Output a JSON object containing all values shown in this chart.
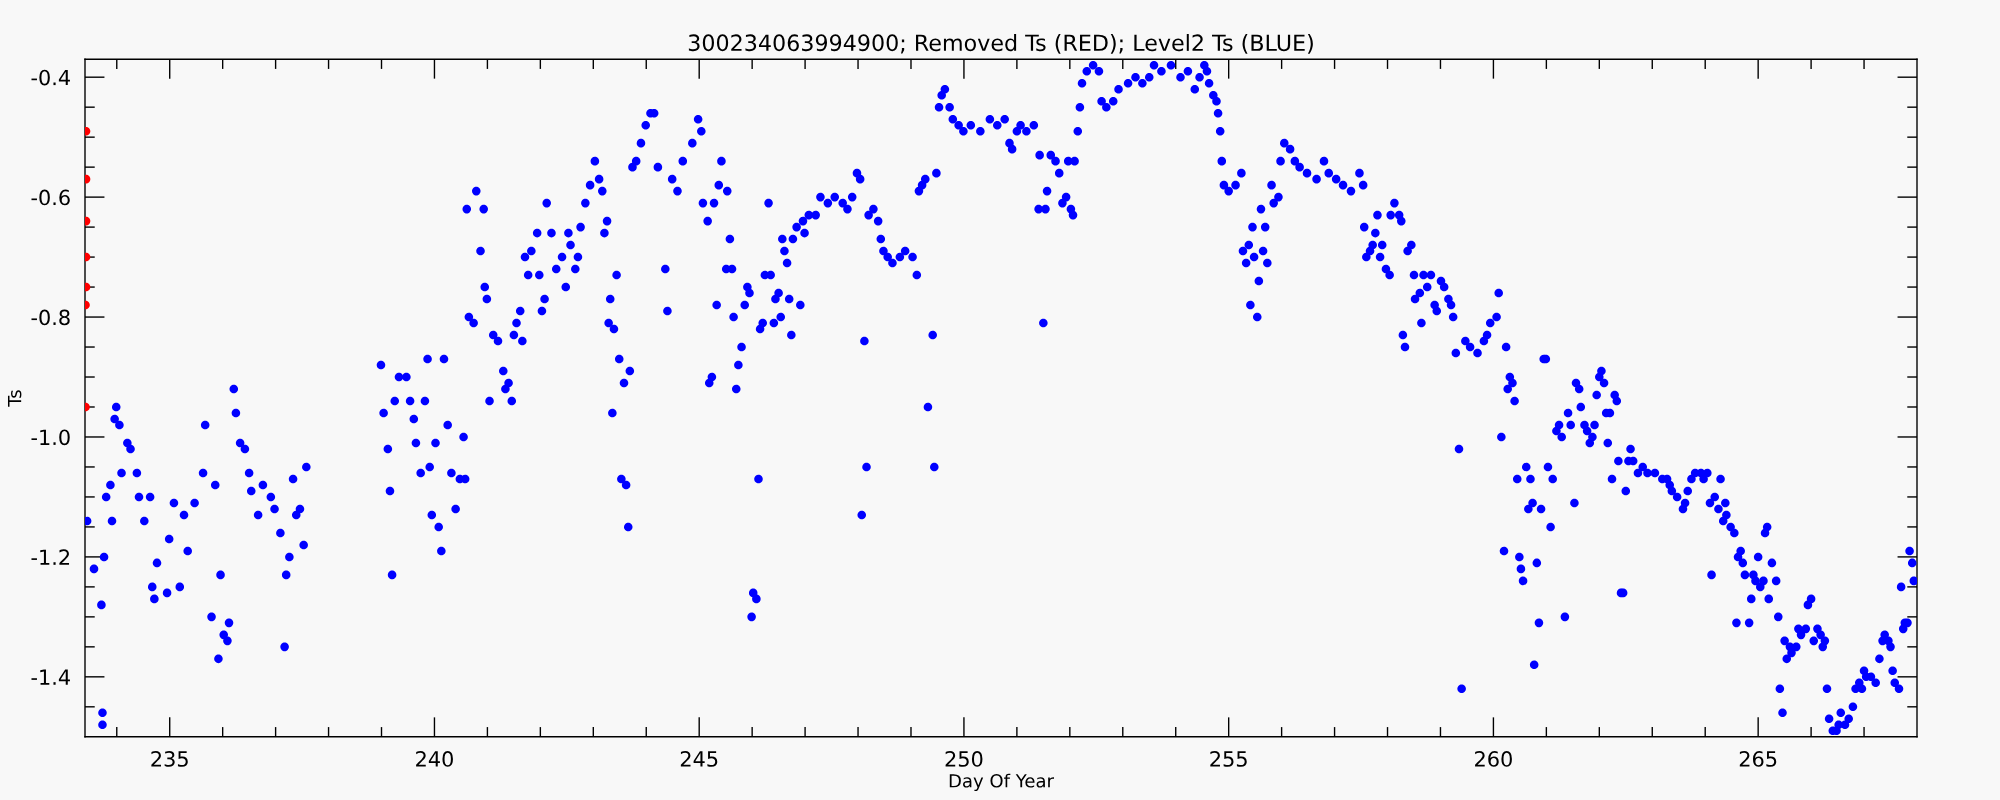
{
  "chart_data": {
    "type": "scatter",
    "title": "300234063994900; Removed Ts (RED); Level2 Ts (BLUE)",
    "xlabel": "Day Of Year",
    "ylabel": "Ts",
    "xlim": [
      233.4,
      268.0
    ],
    "ylim": [
      -1.5,
      -0.37
    ],
    "xticks": [
      {
        "value": 234,
        "label": null
      },
      235,
      {
        "value": 236,
        "label": null
      },
      {
        "value": 237,
        "label": null
      },
      {
        "value": 238,
        "label": null
      },
      {
        "value": 239,
        "label": null
      },
      240,
      {
        "value": 241,
        "label": null
      },
      {
        "value": 242,
        "label": null
      },
      {
        "value": 243,
        "label": null
      },
      {
        "value": 244,
        "label": null
      },
      245,
      {
        "value": 246,
        "label": null
      },
      {
        "value": 247,
        "label": null
      },
      {
        "value": 248,
        "label": null
      },
      {
        "value": 249,
        "label": null
      },
      250,
      {
        "value": 251,
        "label": null
      },
      {
        "value": 252,
        "label": null
      },
      {
        "value": 253,
        "label": null
      },
      {
        "value": 254,
        "label": null
      },
      255,
      {
        "value": 256,
        "label": null
      },
      {
        "value": 257,
        "label": null
      },
      {
        "value": 258,
        "label": null
      },
      {
        "value": 259,
        "label": null
      },
      260,
      {
        "value": 261,
        "label": null
      },
      {
        "value": 262,
        "label": null
      },
      {
        "value": 263,
        "label": null
      },
      {
        "value": 264,
        "label": null
      },
      265,
      {
        "value": 266,
        "label": null
      },
      {
        "value": 267,
        "label": null
      }
    ],
    "yticks": [
      {
        "value": -1.45,
        "label": null
      },
      {
        "value": -1.4,
        "label": "-1.4"
      },
      {
        "value": -1.35,
        "label": null
      },
      {
        "value": -1.3,
        "label": null
      },
      {
        "value": -1.25,
        "label": null
      },
      {
        "value": -1.2,
        "label": "-1.2"
      },
      {
        "value": -1.15,
        "label": null
      },
      {
        "value": -1.1,
        "label": null
      },
      {
        "value": -1.05,
        "label": null
      },
      {
        "value": -1.0,
        "label": "-1.0"
      },
      {
        "value": -0.95,
        "label": null
      },
      {
        "value": -0.9,
        "label": null
      },
      {
        "value": -0.85,
        "label": null
      },
      {
        "value": -0.8,
        "label": "-0.8"
      },
      {
        "value": -0.75,
        "label": null
      },
      {
        "value": -0.7,
        "label": null
      },
      {
        "value": -0.65,
        "label": null
      },
      {
        "value": -0.6,
        "label": "-0.6"
      },
      {
        "value": -0.55,
        "label": null
      },
      {
        "value": -0.5,
        "label": null
      },
      {
        "value": -0.45,
        "label": null
      },
      {
        "value": -0.4,
        "label": "-0.4"
      }
    ],
    "grid": false,
    "legend": false,
    "marker": "circle",
    "series": [
      {
        "color": "#ff0000",
        "x": [
          233.42,
          233.42,
          233.42,
          233.42,
          233.42,
          233.41,
          233.41
        ],
        "values": [
          -0.49,
          -0.57,
          -0.64,
          -0.7,
          -0.75,
          -0.78,
          -0.95
        ]
      },
      {
        "color": "#0000ff",
        "x": [
          233.44,
          233.57,
          233.71,
          233.73,
          233.73,
          233.76,
          233.8,
          233.88,
          233.91,
          233.99,
          233.96,
          234.05,
          234.09,
          234.2,
          234.26,
          234.38,
          234.42,
          234.52,
          234.63,
          234.67,
          234.71,
          234.76,
          234.95,
          234.99,
          235.08,
          235.19,
          235.27,
          235.34,
          235.47,
          235.63,
          235.67,
          235.79,
          235.86,
          235.92,
          235.96,
          236.02,
          236.09,
          236.12,
          236.21,
          236.25,
          236.33,
          236.42,
          236.5,
          236.54,
          236.67,
          236.76,
          236.91,
          236.98,
          237.09,
          237.17,
          237.2,
          237.26,
          237.33,
          237.39,
          237.46,
          237.53,
          237.58,
          238.99,
          239.04,
          239.12,
          239.16,
          239.2,
          239.25,
          239.33,
          239.47,
          239.54,
          239.61,
          239.65,
          239.74,
          239.82,
          239.87,
          239.91,
          239.95,
          240.02,
          240.08,
          240.13,
          240.18,
          240.25,
          240.32,
          240.4,
          240.48,
          240.55,
          240.58,
          240.61,
          240.65,
          240.74,
          240.79,
          240.87,
          240.93,
          240.95,
          240.99,
          241.04,
          241.11,
          241.2,
          241.3,
          241.34,
          241.4,
          241.46,
          241.5,
          241.55,
          241.62,
          241.66,
          241.71,
          241.77,
          241.83,
          241.94,
          241.98,
          242.03,
          242.08,
          242.12,
          242.21,
          242.3,
          242.41,
          242.48,
          242.53,
          242.57,
          242.66,
          242.71,
          242.76,
          242.85,
          242.94,
          243.03,
          243.11,
          243.17,
          243.21,
          243.26,
          243.29,
          243.32,
          243.36,
          243.39,
          243.44,
          243.49,
          243.53,
          243.58,
          243.62,
          243.66,
          243.69,
          243.74,
          243.81,
          243.9,
          243.99,
          244.08,
          244.15,
          244.22,
          244.36,
          244.4,
          244.49,
          244.59,
          244.69,
          244.87,
          244.98,
          245.04,
          245.07,
          245.16,
          245.19,
          245.24,
          245.28,
          245.33,
          245.37,
          245.42,
          245.51,
          245.53,
          245.58,
          245.62,
          245.65,
          245.7,
          245.74,
          245.8,
          245.86,
          245.91,
          245.95,
          245.99,
          246.02,
          246.08,
          246.12,
          246.15,
          246.2,
          246.24,
          246.31,
          246.35,
          246.41,
          246.44,
          246.5,
          246.54,
          246.57,
          246.61,
          246.66,
          246.7,
          246.74,
          246.77,
          246.84,
          246.91,
          246.96,
          246.99,
          247.07,
          247.2,
          247.29,
          247.43,
          247.56,
          247.71,
          247.8,
          247.89,
          247.98,
          248.04,
          248.07,
          248.12,
          248.16,
          248.2,
          248.29,
          248.38,
          248.43,
          248.48,
          248.56,
          248.65,
          248.79,
          248.89,
          249.03,
          249.11,
          249.15,
          249.21,
          249.27,
          249.32,
          249.41,
          249.44,
          249.48,
          249.53,
          249.58,
          249.64,
          249.73,
          249.79,
          249.9,
          249.99,
          250.13,
          250.31,
          250.49,
          250.63,
          250.77,
          250.86,
          250.91,
          251.0,
          251.07,
          251.18,
          251.32,
          251.41,
          251.43,
          251.5,
          251.54,
          251.57,
          251.64,
          251.73,
          251.8,
          251.86,
          251.93,
          251.97,
          252.02,
          252.06,
          252.09,
          252.15,
          252.19,
          252.23,
          252.32,
          252.44,
          252.55,
          252.6,
          252.69,
          252.82,
          252.92,
          253.1,
          253.24,
          253.37,
          253.5,
          253.59,
          253.73,
          253.91,
          254.09,
          254.23,
          254.36,
          254.45,
          254.54,
          254.59,
          254.63,
          254.71,
          254.77,
          254.8,
          254.84,
          254.87,
          254.91,
          255.0,
          255.13,
          255.24,
          255.27,
          255.33,
          255.38,
          255.41,
          255.45,
          255.48,
          255.54,
          255.57,
          255.61,
          255.65,
          255.69,
          255.73,
          255.81,
          255.85,
          255.94,
          255.98,
          256.05,
          256.16,
          256.25,
          256.34,
          256.48,
          256.66,
          256.8,
          256.89,
          257.03,
          257.16,
          257.31,
          257.47,
          257.54,
          257.56,
          257.6,
          257.67,
          257.72,
          257.77,
          257.81,
          257.86,
          257.9,
          257.97,
          258.04,
          258.06,
          258.13,
          258.22,
          258.26,
          258.29,
          258.33,
          258.38,
          258.45,
          258.5,
          258.52,
          258.61,
          258.64,
          258.68,
          258.75,
          258.82,
          258.89,
          258.93,
          259.01,
          259.07,
          259.15,
          259.2,
          259.24,
          259.29,
          259.35,
          259.4,
          259.47,
          259.56,
          259.7,
          259.82,
          259.88,
          259.94,
          260.06,
          260.1,
          260.15,
          260.2,
          260.24,
          260.27,
          260.31,
          260.36,
          260.4,
          260.45,
          260.49,
          260.52,
          260.56,
          260.62,
          260.66,
          260.7,
          260.74,
          260.77,
          260.82,
          260.86,
          260.9,
          260.95,
          260.99,
          261.03,
          261.08,
          261.12,
          261.19,
          261.24,
          261.29,
          261.35,
          261.41,
          261.46,
          261.53,
          261.56,
          261.62,
          261.65,
          261.72,
          261.77,
          261.82,
          261.87,
          261.91,
          261.95,
          262.0,
          262.04,
          262.09,
          262.13,
          262.16,
          262.2,
          262.24,
          262.29,
          262.33,
          262.36,
          262.41,
          262.45,
          262.5,
          262.55,
          262.59,
          262.64,
          262.73,
          262.82,
          262.91,
          263.05,
          263.19,
          263.28,
          263.33,
          263.37,
          263.47,
          263.58,
          263.62,
          263.67,
          263.74,
          263.81,
          263.92,
          263.97,
          264.04,
          264.09,
          264.12,
          264.18,
          264.25,
          264.29,
          264.34,
          264.38,
          264.4,
          264.48,
          264.55,
          264.59,
          264.62,
          264.67,
          264.71,
          264.75,
          264.83,
          264.87,
          264.91,
          264.95,
          265.0,
          265.04,
          265.1,
          265.13,
          265.17,
          265.2,
          265.26,
          265.34,
          265.38,
          265.41,
          265.46,
          265.5,
          265.54,
          265.6,
          265.63,
          265.72,
          265.76,
          265.81,
          265.9,
          265.94,
          266.0,
          266.05,
          266.12,
          266.18,
          266.22,
          266.26,
          266.3,
          266.34,
          266.41,
          266.48,
          266.52,
          266.56,
          266.64,
          266.71,
          266.79,
          266.84,
          266.91,
          266.96,
          267.0,
          267.04,
          267.13,
          267.22,
          267.29,
          267.35,
          267.39,
          267.46,
          267.5,
          267.54,
          267.58,
          267.66,
          267.7,
          267.74,
          267.77,
          267.82,
          267.86,
          267.91,
          267.94
        ],
        "values": [
          -1.14,
          -1.22,
          -1.28,
          -1.48,
          -1.46,
          -1.2,
          -1.1,
          -1.08,
          -1.14,
          -0.95,
          -0.97,
          -0.98,
          -1.06,
          -1.01,
          -1.02,
          -1.06,
          -1.1,
          -1.14,
          -1.1,
          -1.25,
          -1.27,
          -1.21,
          -1.26,
          -1.17,
          -1.11,
          -1.25,
          -1.13,
          -1.19,
          -1.11,
          -1.06,
          -0.98,
          -1.3,
          -1.08,
          -1.37,
          -1.23,
          -1.33,
          -1.34,
          -1.31,
          -0.92,
          -0.96,
          -1.01,
          -1.02,
          -1.06,
          -1.09,
          -1.13,
          -1.08,
          -1.1,
          -1.12,
          -1.16,
          -1.35,
          -1.23,
          -1.2,
          -1.07,
          -1.13,
          -1.12,
          -1.18,
          -1.05,
          -0.88,
          -0.96,
          -1.02,
          -1.09,
          -1.23,
          -0.94,
          -0.9,
          -0.9,
          -0.94,
          -0.97,
          -1.01,
          -1.06,
          -0.94,
          -0.87,
          -1.05,
          -1.13,
          -1.01,
          -1.15,
          -1.19,
          -0.87,
          -0.98,
          -1.06,
          -1.12,
          -1.07,
          -1.0,
          -1.07,
          -0.62,
          -0.8,
          -0.81,
          -0.59,
          -0.69,
          -0.62,
          -0.75,
          -0.77,
          -0.94,
          -0.83,
          -0.84,
          -0.89,
          -0.92,
          -0.91,
          -0.94,
          -0.83,
          -0.81,
          -0.79,
          -0.84,
          -0.7,
          -0.73,
          -0.69,
          -0.66,
          -0.73,
          -0.79,
          -0.77,
          -0.61,
          -0.66,
          -0.72,
          -0.7,
          -0.75,
          -0.66,
          -0.68,
          -0.72,
          -0.7,
          -0.65,
          -0.61,
          -0.58,
          -0.54,
          -0.57,
          -0.59,
          -0.66,
          -0.64,
          -0.81,
          -0.77,
          -0.96,
          -0.82,
          -0.73,
          -0.87,
          -1.07,
          -0.91,
          -1.08,
          -1.15,
          -0.89,
          -0.55,
          -0.54,
          -0.51,
          -0.48,
          -0.46,
          -0.46,
          -0.55,
          -0.72,
          -0.79,
          -0.57,
          -0.59,
          -0.54,
          -0.51,
          -0.47,
          -0.49,
          -0.61,
          -0.64,
          -0.91,
          -0.9,
          -0.61,
          -0.78,
          -0.58,
          -0.54,
          -0.72,
          -0.59,
          -0.67,
          -0.72,
          -0.8,
          -0.92,
          -0.88,
          -0.85,
          -0.78,
          -0.75,
          -0.76,
          -1.3,
          -1.26,
          -1.27,
          -1.07,
          -0.82,
          -0.81,
          -0.73,
          -0.61,
          -0.73,
          -0.81,
          -0.77,
          -0.76,
          -0.8,
          -0.67,
          -0.69,
          -0.71,
          -0.77,
          -0.83,
          -0.67,
          -0.65,
          -0.78,
          -0.64,
          -0.66,
          -0.63,
          -0.63,
          -0.6,
          -0.61,
          -0.6,
          -0.61,
          -0.62,
          -0.6,
          -0.56,
          -0.57,
          -1.13,
          -0.84,
          -1.05,
          -0.63,
          -0.62,
          -0.64,
          -0.67,
          -0.69,
          -0.7,
          -0.71,
          -0.7,
          -0.69,
          -0.7,
          -0.73,
          -0.59,
          -0.58,
          -0.57,
          -0.95,
          -0.83,
          -1.05,
          -0.56,
          -0.45,
          -0.43,
          -0.42,
          -0.45,
          -0.47,
          -0.48,
          -0.49,
          -0.48,
          -0.49,
          -0.47,
          -0.48,
          -0.47,
          -0.51,
          -0.52,
          -0.49,
          -0.48,
          -0.49,
          -0.48,
          -0.62,
          -0.53,
          -0.81,
          -0.62,
          -0.59,
          -0.53,
          -0.54,
          -0.56,
          -0.61,
          -0.6,
          -0.54,
          -0.62,
          -0.63,
          -0.54,
          -0.49,
          -0.45,
          -0.41,
          -0.39,
          -0.38,
          -0.39,
          -0.44,
          -0.45,
          -0.44,
          -0.42,
          -0.41,
          -0.4,
          -0.41,
          -0.4,
          -0.38,
          -0.39,
          -0.38,
          -0.4,
          -0.39,
          -0.42,
          -0.4,
          -0.38,
          -0.39,
          -0.41,
          -0.43,
          -0.44,
          -0.46,
          -0.49,
          -0.54,
          -0.58,
          -0.59,
          -0.58,
          -0.56,
          -0.69,
          -0.71,
          -0.68,
          -0.78,
          -0.65,
          -0.7,
          -0.8,
          -0.74,
          -0.62,
          -0.69,
          -0.65,
          -0.71,
          -0.58,
          -0.61,
          -0.6,
          -0.54,
          -0.51,
          -0.52,
          -0.54,
          -0.55,
          -0.56,
          -0.57,
          -0.54,
          -0.56,
          -0.57,
          -0.58,
          -0.59,
          -0.56,
          -0.58,
          -0.65,
          -0.7,
          -0.69,
          -0.68,
          -0.66,
          -0.63,
          -0.7,
          -0.68,
          -0.72,
          -0.73,
          -0.63,
          -0.61,
          -0.63,
          -0.64,
          -0.83,
          -0.85,
          -0.69,
          -0.68,
          -0.73,
          -0.77,
          -0.76,
          -0.81,
          -0.73,
          -0.75,
          -0.73,
          -0.78,
          -0.79,
          -0.74,
          -0.75,
          -0.77,
          -0.78,
          -0.8,
          -0.86,
          -1.02,
          -1.42,
          -0.84,
          -0.85,
          -0.86,
          -0.84,
          -0.83,
          -0.81,
          -0.8,
          -0.76,
          -1.0,
          -1.19,
          -0.85,
          -0.92,
          -0.9,
          -0.91,
          -0.94,
          -1.07,
          -1.2,
          -1.22,
          -1.24,
          -1.05,
          -1.12,
          -1.07,
          -1.11,
          -1.38,
          -1.21,
          -1.31,
          -1.12,
          -0.87,
          -0.87,
          -1.05,
          -1.15,
          -1.07,
          -0.99,
          -0.98,
          -1.0,
          -1.3,
          -0.96,
          -0.98,
          -1.11,
          -0.91,
          -0.92,
          -0.95,
          -0.98,
          -0.99,
          -1.01,
          -1.0,
          -0.98,
          -0.93,
          -0.9,
          -0.89,
          -0.91,
          -0.96,
          -1.01,
          -0.96,
          -1.07,
          -0.93,
          -0.94,
          -1.04,
          -1.26,
          -1.26,
          -1.09,
          -1.04,
          -1.02,
          -1.04,
          -1.06,
          -1.05,
          -1.06,
          -1.06,
          -1.07,
          -1.07,
          -1.08,
          -1.09,
          -1.1,
          -1.12,
          -1.11,
          -1.09,
          -1.07,
          -1.06,
          -1.06,
          -1.07,
          -1.06,
          -1.11,
          -1.23,
          -1.1,
          -1.12,
          -1.07,
          -1.14,
          -1.11,
          -1.13,
          -1.15,
          -1.16,
          -1.31,
          -1.2,
          -1.19,
          -1.21,
          -1.23,
          -1.31,
          -1.27,
          -1.23,
          -1.24,
          -1.2,
          -1.25,
          -1.24,
          -1.16,
          -1.15,
          -1.27,
          -1.21,
          -1.24,
          -1.3,
          -1.42,
          -1.46,
          -1.34,
          -1.37,
          -1.35,
          -1.36,
          -1.35,
          -1.32,
          -1.33,
          -1.32,
          -1.28,
          -1.27,
          -1.34,
          -1.32,
          -1.33,
          -1.35,
          -1.34,
          -1.42,
          -1.47,
          -1.49,
          -1.49,
          -1.48,
          -1.46,
          -1.48,
          -1.47,
          -1.45,
          -1.42,
          -1.41,
          -1.42,
          -1.39,
          -1.4,
          -1.4,
          -1.41,
          -1.37,
          -1.34,
          -1.33,
          -1.34,
          -1.35,
          -1.39,
          -1.41,
          -1.42,
          -1.25,
          -1.32,
          -1.31,
          -1.31,
          -1.19,
          -1.21,
          -1.24
        ]
      }
    ]
  }
}
